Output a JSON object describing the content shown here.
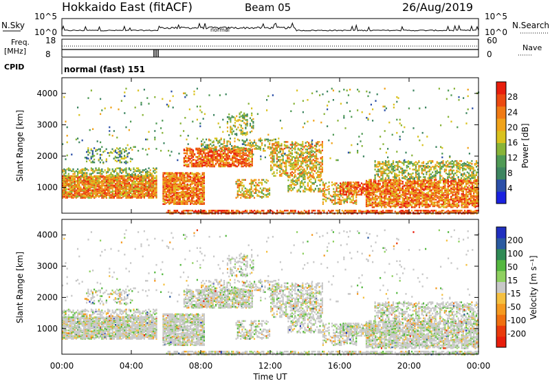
{
  "header": {
    "site": "Hokkaido East (fitACF)",
    "beam": "Beam 05",
    "date": "26/Aug/2019"
  },
  "strip_panels": {
    "nsky": {
      "label": "N.Sky",
      "ticks": [
        "10^5",
        "10^0"
      ]
    },
    "nsearch": {
      "label": "N.Search",
      "ticks": [
        "10^5",
        "10^0"
      ],
      "inline_text": "normal"
    },
    "freq": {
      "label_line1": "Freq.",
      "label_line2": "[MHz]",
      "ticks": [
        "18",
        "8"
      ]
    },
    "nave": {
      "label": "Nave",
      "ticks": [
        "60",
        "0"
      ]
    },
    "cpid": {
      "label": "CPID",
      "value": "normal (fast) 151"
    }
  },
  "chart_data": [
    {
      "type": "heatmap",
      "name": "power-panel",
      "ylabel": "Slant Range [km]",
      "y_ticks": [
        1000,
        2000,
        3000,
        4000
      ],
      "ylim": [
        180,
        4500
      ],
      "x_ticks": [
        "00:00",
        "04:00",
        "08:00",
        "12:00",
        "16:00",
        "20:00",
        "00:00"
      ],
      "xlim_hours": [
        0,
        24
      ],
      "colorbar": {
        "label": "Power [dB]",
        "ticks": [
          "4",
          "8",
          "12",
          "16",
          "20",
          "24",
          "28"
        ],
        "colors": [
          "#1a22e0",
          "#2b4fa8",
          "#3d8560",
          "#4f9a55",
          "#88b438",
          "#d9c21e",
          "#f0a31a",
          "#f07a14",
          "#ec4a10",
          "#e81e0c"
        ]
      }
    },
    {
      "type": "heatmap",
      "name": "velocity-panel",
      "ylabel": "Slant Range [km]",
      "y_ticks": [
        1000,
        2000,
        3000,
        4000
      ],
      "ylim": [
        180,
        4500
      ],
      "x_ticks": [
        "00:00",
        "04:00",
        "08:00",
        "12:00",
        "16:00",
        "20:00",
        "00:00"
      ],
      "xlabel": "Time UT",
      "xlim_hours": [
        0,
        24
      ],
      "colorbar": {
        "label": "Velocity [m s⁻¹]",
        "ticks": [
          "200",
          "100",
          "50",
          "15",
          "-15",
          "-50",
          "-100",
          "-200"
        ],
        "colors": [
          "#2030c0",
          "#2a5aa0",
          "#2f8a55",
          "#55b840",
          "#8fd060",
          "#c8c8c8",
          "#f5c040",
          "#f59a20",
          "#f07010",
          "#ea3a0c",
          "#e81e0c"
        ]
      }
    }
  ]
}
